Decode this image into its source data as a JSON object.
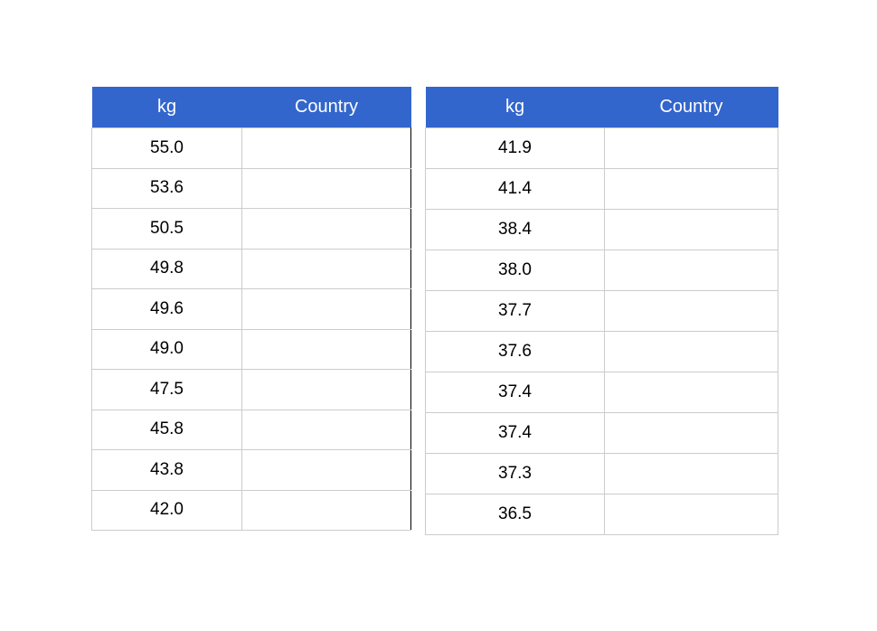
{
  "tables": [
    {
      "headers": [
        "kg",
        "Country"
      ],
      "rows": [
        {
          "kg": "55.0",
          "country": ""
        },
        {
          "kg": "53.6",
          "country": ""
        },
        {
          "kg": "50.5",
          "country": ""
        },
        {
          "kg": "49.8",
          "country": ""
        },
        {
          "kg": "49.6",
          "country": ""
        },
        {
          "kg": "49.0",
          "country": ""
        },
        {
          "kg": "47.5",
          "country": ""
        },
        {
          "kg": "45.8",
          "country": ""
        },
        {
          "kg": "43.8",
          "country": ""
        },
        {
          "kg": "42.0",
          "country": ""
        }
      ]
    },
    {
      "headers": [
        "kg",
        "Country"
      ],
      "rows": [
        {
          "kg": "41.9",
          "country": ""
        },
        {
          "kg": "41.4",
          "country": ""
        },
        {
          "kg": "38.4",
          "country": ""
        },
        {
          "kg": "38.0",
          "country": ""
        },
        {
          "kg": "37.7",
          "country": ""
        },
        {
          "kg": "37.6",
          "country": ""
        },
        {
          "kg": "37.4",
          "country": ""
        },
        {
          "kg": "37.4",
          "country": ""
        },
        {
          "kg": "37.3",
          "country": ""
        },
        {
          "kg": "36.5",
          "country": ""
        }
      ]
    }
  ],
  "colors": {
    "header_bg": "#3366cc",
    "header_text": "#ffffff",
    "grid": "#cccccc"
  }
}
